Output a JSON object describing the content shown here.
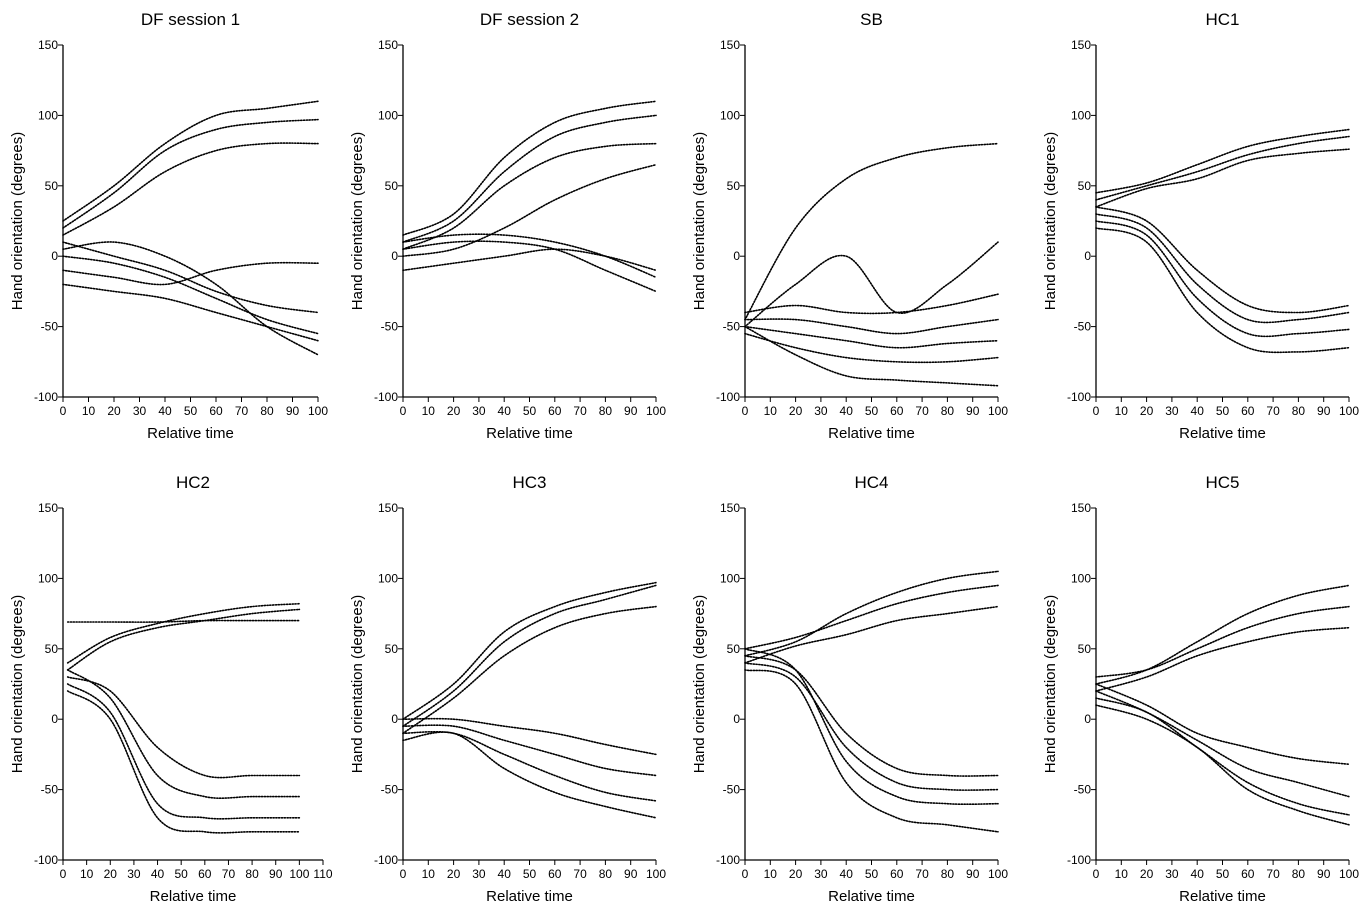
{
  "figure": {
    "panel_count": 8
  },
  "chart_data": [
    {
      "type": "line",
      "title": "DF session 1",
      "xlabel": "Relative time",
      "ylabel": "Hand orientation (degrees)",
      "xlim": [
        0,
        100
      ],
      "ylim": [
        -100,
        150
      ],
      "xticks": [
        0,
        10,
        20,
        30,
        40,
        50,
        60,
        70,
        80,
        90,
        100
      ],
      "yticks": [
        -100,
        -50,
        0,
        50,
        100,
        150
      ],
      "series": [
        {
          "x": [
            0,
            20,
            40,
            60,
            80,
            100
          ],
          "y": [
            20,
            45,
            75,
            90,
            95,
            97
          ]
        },
        {
          "x": [
            0,
            20,
            40,
            60,
            80,
            100
          ],
          "y": [
            15,
            35,
            60,
            75,
            80,
            80
          ]
        },
        {
          "x": [
            0,
            20,
            40,
            60,
            80,
            100
          ],
          "y": [
            25,
            50,
            80,
            100,
            105,
            110
          ]
        },
        {
          "x": [
            0,
            20,
            40,
            60,
            80,
            100
          ],
          "y": [
            10,
            0,
            -10,
            -25,
            -35,
            -40
          ]
        },
        {
          "x": [
            0,
            20,
            40,
            60,
            80,
            100
          ],
          "y": [
            0,
            -5,
            -15,
            -30,
            -45,
            -55
          ]
        },
        {
          "x": [
            0,
            20,
            40,
            60,
            80,
            100
          ],
          "y": [
            5,
            10,
            0,
            -20,
            -50,
            -70
          ]
        },
        {
          "x": [
            0,
            20,
            40,
            60,
            80,
            100
          ],
          "y": [
            -10,
            -15,
            -20,
            -10,
            -5,
            -5
          ]
        },
        {
          "x": [
            0,
            20,
            40,
            60,
            80,
            100
          ],
          "y": [
            -20,
            -25,
            -30,
            -40,
            -50,
            -60
          ]
        }
      ]
    },
    {
      "type": "line",
      "title": "DF session 2",
      "xlabel": "Relative time",
      "ylabel": "Hand orientation (degrees)",
      "xlim": [
        0,
        100
      ],
      "ylim": [
        -100,
        150
      ],
      "xticks": [
        0,
        10,
        20,
        30,
        40,
        50,
        60,
        70,
        80,
        90,
        100
      ],
      "yticks": [
        -100,
        -50,
        0,
        50,
        100,
        150
      ],
      "series": [
        {
          "x": [
            0,
            20,
            40,
            60,
            80,
            100
          ],
          "y": [
            10,
            25,
            60,
            85,
            95,
            100
          ]
        },
        {
          "x": [
            0,
            20,
            40,
            60,
            80,
            100
          ],
          "y": [
            15,
            30,
            70,
            95,
            105,
            110
          ]
        },
        {
          "x": [
            0,
            20,
            40,
            60,
            80,
            100
          ],
          "y": [
            5,
            20,
            50,
            70,
            78,
            80
          ]
        },
        {
          "x": [
            0,
            20,
            40,
            60,
            80,
            100
          ],
          "y": [
            10,
            15,
            15,
            10,
            0,
            -15
          ]
        },
        {
          "x": [
            0,
            20,
            40,
            60,
            80,
            100
          ],
          "y": [
            5,
            10,
            10,
            5,
            -10,
            -25
          ]
        },
        {
          "x": [
            0,
            20,
            40,
            60,
            80,
            100
          ],
          "y": [
            0,
            5,
            20,
            40,
            55,
            65
          ]
        },
        {
          "x": [
            0,
            20,
            40,
            60,
            80,
            100
          ],
          "y": [
            -10,
            -5,
            0,
            5,
            0,
            -10
          ]
        }
      ]
    },
    {
      "type": "line",
      "title": "SB",
      "xlabel": "Relative time",
      "ylabel": "Hand orientation (degrees)",
      "xlim": [
        0,
        100
      ],
      "ylim": [
        -100,
        150
      ],
      "xticks": [
        0,
        10,
        20,
        30,
        40,
        50,
        60,
        70,
        80,
        90,
        100
      ],
      "yticks": [
        -100,
        -50,
        0,
        50,
        100,
        150
      ],
      "series": [
        {
          "x": [
            0,
            20,
            40,
            60,
            80,
            100
          ],
          "y": [
            -45,
            20,
            55,
            70,
            77,
            80
          ]
        },
        {
          "x": [
            0,
            20,
            40,
            60,
            80,
            100
          ],
          "y": [
            -40,
            -35,
            -40,
            -40,
            -35,
            -27
          ]
        },
        {
          "x": [
            0,
            20,
            40,
            60,
            80,
            100
          ],
          "y": [
            -45,
            -45,
            -50,
            -55,
            -50,
            -45
          ]
        },
        {
          "x": [
            0,
            20,
            40,
            60,
            80,
            100
          ],
          "y": [
            -50,
            -55,
            -60,
            -65,
            -62,
            -60
          ]
        },
        {
          "x": [
            0,
            20,
            40,
            60,
            80,
            100
          ],
          "y": [
            -55,
            -65,
            -72,
            -75,
            -75,
            -72
          ]
        },
        {
          "x": [
            0,
            20,
            40,
            60,
            80,
            100
          ],
          "y": [
            -50,
            -70,
            -85,
            -88,
            -90,
            -92
          ]
        },
        {
          "x": [
            0,
            20,
            40,
            60,
            80,
            100
          ],
          "y": [
            -50,
            -20,
            0,
            -40,
            -20,
            10
          ]
        }
      ]
    },
    {
      "type": "line",
      "title": "HC1",
      "xlabel": "Relative time",
      "ylabel": "Hand orientation (degrees)",
      "xlim": [
        0,
        100
      ],
      "ylim": [
        -100,
        150
      ],
      "xticks": [
        0,
        10,
        20,
        30,
        40,
        50,
        60,
        70,
        80,
        90,
        100
      ],
      "yticks": [
        -100,
        -50,
        0,
        50,
        100,
        150
      ],
      "series": [
        {
          "x": [
            0,
            20,
            40,
            60,
            80,
            100
          ],
          "y": [
            40,
            50,
            60,
            72,
            80,
            85
          ]
        },
        {
          "x": [
            0,
            20,
            40,
            60,
            80,
            100
          ],
          "y": [
            45,
            52,
            65,
            78,
            85,
            90
          ]
        },
        {
          "x": [
            0,
            20,
            40,
            60,
            80,
            100
          ],
          "y": [
            35,
            48,
            55,
            68,
            73,
            76
          ]
        },
        {
          "x": [
            0,
            20,
            40,
            60,
            80,
            100
          ],
          "y": [
            30,
            20,
            -20,
            -45,
            -45,
            -40
          ]
        },
        {
          "x": [
            0,
            20,
            40,
            60,
            80,
            100
          ],
          "y": [
            25,
            15,
            -30,
            -55,
            -55,
            -52
          ]
        },
        {
          "x": [
            0,
            20,
            40,
            60,
            80,
            100
          ],
          "y": [
            20,
            10,
            -40,
            -65,
            -68,
            -65
          ]
        },
        {
          "x": [
            0,
            20,
            40,
            60,
            80,
            100
          ],
          "y": [
            35,
            25,
            -10,
            -35,
            -40,
            -35
          ]
        }
      ]
    },
    {
      "type": "line",
      "title": "HC2",
      "xlabel": "Relative time",
      "ylabel": "Hand orientation (degrees)",
      "xlim": [
        0,
        110
      ],
      "ylim": [
        -100,
        150
      ],
      "xticks": [
        0,
        10,
        20,
        30,
        40,
        50,
        60,
        70,
        80,
        90,
        100,
        110
      ],
      "yticks": [
        -100,
        -50,
        0,
        50,
        100,
        150
      ],
      "series": [
        {
          "x": [
            2,
            20,
            40,
            60,
            80,
            100
          ],
          "y": [
            69,
            69,
            69,
            70,
            70,
            70
          ]
        },
        {
          "x": [
            2,
            20,
            40,
            60,
            80,
            100
          ],
          "y": [
            35,
            55,
            65,
            70,
            75,
            78
          ]
        },
        {
          "x": [
            2,
            20,
            40,
            60,
            80,
            100
          ],
          "y": [
            40,
            58,
            68,
            75,
            80,
            82
          ]
        },
        {
          "x": [
            2,
            20,
            40,
            60,
            80,
            100
          ],
          "y": [
            30,
            20,
            -20,
            -40,
            -40,
            -40
          ]
        },
        {
          "x": [
            2,
            20,
            40,
            60,
            80,
            100
          ],
          "y": [
            35,
            15,
            -40,
            -55,
            -55,
            -55
          ]
        },
        {
          "x": [
            2,
            20,
            40,
            60,
            80,
            100
          ],
          "y": [
            25,
            5,
            -60,
            -70,
            -70,
            -70
          ]
        },
        {
          "x": [
            2,
            20,
            40,
            60,
            80,
            100
          ],
          "y": [
            20,
            0,
            -70,
            -80,
            -80,
            -80
          ]
        }
      ]
    },
    {
      "type": "line",
      "title": "HC3",
      "xlabel": "Relative time",
      "ylabel": "Hand orientation (degrees)",
      "xlim": [
        0,
        100
      ],
      "ylim": [
        -100,
        150
      ],
      "xticks": [
        0,
        10,
        20,
        30,
        40,
        50,
        60,
        70,
        80,
        90,
        100
      ],
      "yticks": [
        -100,
        -50,
        0,
        50,
        100,
        150
      ],
      "series": [
        {
          "x": [
            0,
            20,
            40,
            60,
            80,
            100
          ],
          "y": [
            -5,
            20,
            55,
            75,
            85,
            95
          ]
        },
        {
          "x": [
            0,
            20,
            40,
            60,
            80,
            100
          ],
          "y": [
            -10,
            15,
            45,
            65,
            75,
            80
          ]
        },
        {
          "x": [
            0,
            20,
            40,
            60,
            80,
            100
          ],
          "y": [
            0,
            25,
            62,
            80,
            90,
            97
          ]
        },
        {
          "x": [
            0,
            20,
            40,
            60,
            80,
            100
          ],
          "y": [
            0,
            0,
            -5,
            -10,
            -18,
            -25
          ]
        },
        {
          "x": [
            0,
            20,
            40,
            60,
            80,
            100
          ],
          "y": [
            -5,
            -5,
            -15,
            -25,
            -35,
            -40
          ]
        },
        {
          "x": [
            0,
            20,
            40,
            60,
            80,
            100
          ],
          "y": [
            -10,
            -10,
            -25,
            -40,
            -52,
            -58
          ]
        },
        {
          "x": [
            0,
            20,
            40,
            60,
            80,
            100
          ],
          "y": [
            -15,
            -10,
            -35,
            -52,
            -62,
            -70
          ]
        }
      ]
    },
    {
      "type": "line",
      "title": "HC4",
      "xlabel": "Relative time",
      "ylabel": "Hand orientation (degrees)",
      "xlim": [
        0,
        100
      ],
      "ylim": [
        -100,
        150
      ],
      "xticks": [
        0,
        10,
        20,
        30,
        40,
        50,
        60,
        70,
        80,
        90,
        100
      ],
      "yticks": [
        -100,
        -50,
        0,
        50,
        100,
        150
      ],
      "series": [
        {
          "x": [
            0,
            20,
            40,
            60,
            80,
            100
          ],
          "y": [
            45,
            55,
            75,
            90,
            100,
            105
          ]
        },
        {
          "x": [
            0,
            20,
            40,
            60,
            80,
            100
          ],
          "y": [
            50,
            58,
            70,
            82,
            90,
            95
          ]
        },
        {
          "x": [
            0,
            20,
            40,
            60,
            80,
            100
          ],
          "y": [
            40,
            52,
            60,
            70,
            75,
            80
          ]
        },
        {
          "x": [
            0,
            20,
            40,
            60,
            80,
            100
          ],
          "y": [
            45,
            35,
            -10,
            -35,
            -40,
            -40
          ]
        },
        {
          "x": [
            0,
            20,
            40,
            60,
            80,
            100
          ],
          "y": [
            40,
            30,
            -20,
            -45,
            -50,
            -50
          ]
        },
        {
          "x": [
            0,
            20,
            40,
            60,
            80,
            100
          ],
          "y": [
            50,
            35,
            -30,
            -55,
            -60,
            -60
          ]
        },
        {
          "x": [
            0,
            20,
            40,
            60,
            80,
            100
          ],
          "y": [
            35,
            25,
            -45,
            -70,
            -75,
            -80
          ]
        }
      ]
    },
    {
      "type": "line",
      "title": "HC5",
      "xlabel": "Relative time",
      "ylabel": "Hand orientation (degrees)",
      "xlim": [
        0,
        100
      ],
      "ylim": [
        -100,
        150
      ],
      "xticks": [
        0,
        10,
        20,
        30,
        40,
        50,
        60,
        70,
        80,
        90,
        100
      ],
      "yticks": [
        -100,
        -50,
        0,
        50,
        100,
        150
      ],
      "series": [
        {
          "x": [
            0,
            20,
            40,
            60,
            80,
            100
          ],
          "y": [
            25,
            35,
            55,
            75,
            88,
            95
          ]
        },
        {
          "x": [
            0,
            20,
            40,
            60,
            80,
            100
          ],
          "y": [
            30,
            35,
            50,
            65,
            75,
            80
          ]
        },
        {
          "x": [
            0,
            20,
            40,
            60,
            80,
            100
          ],
          "y": [
            20,
            30,
            45,
            55,
            62,
            65
          ]
        },
        {
          "x": [
            0,
            20,
            40,
            60,
            80,
            100
          ],
          "y": [
            25,
            10,
            -10,
            -20,
            -28,
            -32
          ]
        },
        {
          "x": [
            0,
            20,
            40,
            60,
            80,
            100
          ],
          "y": [
            20,
            5,
            -15,
            -35,
            -45,
            -55
          ]
        },
        {
          "x": [
            0,
            20,
            40,
            60,
            80,
            100
          ],
          "y": [
            15,
            5,
            -20,
            -45,
            -60,
            -68
          ]
        },
        {
          "x": [
            0,
            20,
            40,
            60,
            80,
            100
          ],
          "y": [
            10,
            0,
            -20,
            -50,
            -65,
            -75
          ]
        }
      ]
    }
  ]
}
